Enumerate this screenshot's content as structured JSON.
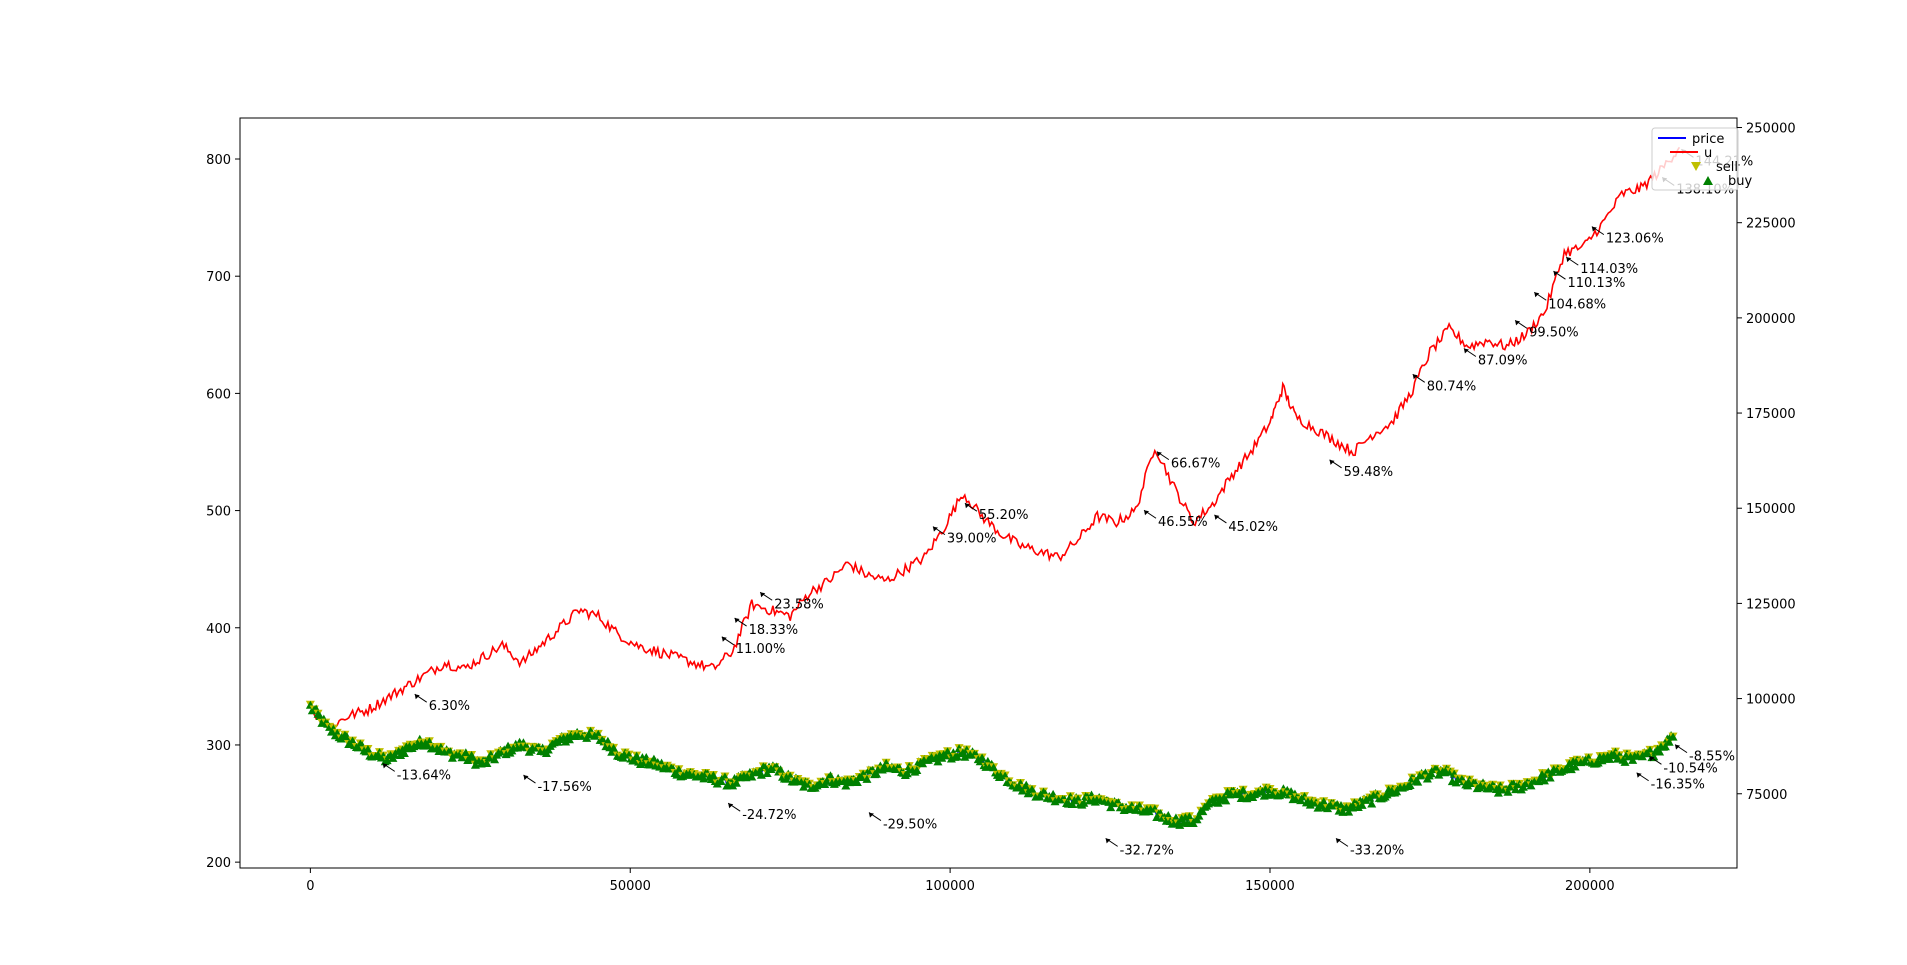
{
  "chart_data": {
    "type": "line",
    "title": "",
    "xlabel": "",
    "ylabel": "",
    "xlim": [
      -11000,
      223000
    ],
    "ylim_left": [
      195,
      835
    ],
    "ylim_right": [
      55500,
      252500
    ],
    "x_ticks": [
      0,
      50000,
      100000,
      150000,
      200000
    ],
    "x_tick_labels": [
      "0",
      "50000",
      "100000",
      "150000",
      "200000"
    ],
    "left_ticks": [
      200,
      300,
      400,
      500,
      600,
      700,
      800
    ],
    "left_tick_labels": [
      "200",
      "300",
      "400",
      "500",
      "600",
      "700",
      "800"
    ],
    "right_ticks": [
      75000,
      100000,
      125000,
      150000,
      175000,
      200000,
      225000,
      250000
    ],
    "right_tick_labels": [
      "75000",
      "100000",
      "125000",
      "150000",
      "175000",
      "200000",
      "225000",
      "250000"
    ],
    "legend": {
      "placement": "upper-right",
      "entries": [
        {
          "label": "price",
          "color": "#0000ff",
          "marker": "line"
        },
        {
          "label": "u",
          "color": "#ff0000",
          "marker": "line"
        },
        {
          "label": "sell",
          "color": "#bfbf00",
          "marker": "triangle-down"
        },
        {
          "label": "buy",
          "color": "#008000",
          "marker": "triangle-up"
        }
      ]
    },
    "series": [
      {
        "name": "u",
        "axis": "left",
        "color": "#ff0000",
        "x": [
          0,
          3000,
          6000,
          9000,
          12000,
          15000,
          18000,
          21000,
          24000,
          27000,
          30000,
          33000,
          36000,
          39000,
          42000,
          45000,
          48000,
          51000,
          54000,
          57000,
          60000,
          63000,
          66000,
          69000,
          72000,
          75000,
          78000,
          81000,
          84000,
          87000,
          90000,
          93000,
          96000,
          99000,
          102000,
          105000,
          108000,
          111000,
          114000,
          117000,
          120000,
          123000,
          126000,
          129000,
          132000,
          135000,
          138000,
          141000,
          144000,
          147000,
          150000,
          152000,
          154000,
          157000,
          160000,
          163000,
          166000,
          169000,
          172000,
          175000,
          178000,
          181000,
          184000,
          187000,
          190000,
          193000,
          196000,
          199000,
          202000,
          205000,
          208000,
          211000,
          214000
        ],
        "y": [
          330,
          315,
          325,
          330,
          340,
          350,
          360,
          370,
          365,
          375,
          385,
          370,
          385,
          400,
          415,
          410,
          395,
          385,
          380,
          375,
          370,
          365,
          380,
          420,
          415,
          410,
          430,
          440,
          455,
          445,
          440,
          450,
          460,
          485,
          515,
          495,
          480,
          470,
          465,
          460,
          475,
          495,
          490,
          500,
          555,
          520,
          490,
          505,
          530,
          550,
          575,
          605,
          580,
          570,
          560,
          550,
          565,
          575,
          600,
          635,
          655,
          640,
          645,
          640,
          650,
          670,
          720,
          725,
          745,
          770,
          775,
          790,
          810
        ]
      },
      {
        "name": "price",
        "axis": "right",
        "color": "#0000ff",
        "x": [
          0,
          3000,
          6000,
          9000,
          12000,
          15000,
          18000,
          21000,
          24000,
          27000,
          30000,
          33000,
          36000,
          39000,
          42000,
          45000,
          48000,
          51000,
          54000,
          57000,
          60000,
          63000,
          66000,
          69000,
          72000,
          75000,
          78000,
          81000,
          84000,
          87000,
          90000,
          93000,
          96000,
          99000,
          102000,
          105000,
          108000,
          111000,
          114000,
          117000,
          120000,
          123000,
          126000,
          129000,
          132000,
          135000,
          138000,
          141000,
          144000,
          147000,
          150000,
          153000,
          156000,
          159000,
          162000,
          165000,
          168000,
          171000,
          174000,
          177000,
          180000,
          183000,
          186000,
          189000,
          192000,
          195000,
          198000,
          201000,
          204000,
          207000,
          210000,
          213000
        ],
        "y": [
          98000,
          92000,
          89000,
          86000,
          84000,
          87000,
          89000,
          86000,
          85000,
          83000,
          86000,
          88000,
          86000,
          89000,
          91000,
          90000,
          86000,
          84000,
          83000,
          81000,
          80000,
          79000,
          78000,
          80000,
          82000,
          79000,
          77000,
          79000,
          78000,
          80000,
          82000,
          81000,
          83000,
          85000,
          86000,
          84000,
          80000,
          77000,
          75000,
          74000,
          73000,
          74000,
          72000,
          71000,
          70000,
          68000,
          68000,
          73000,
          75000,
          75000,
          76000,
          75000,
          73000,
          72000,
          71000,
          73000,
          75000,
          77000,
          80000,
          81000,
          78000,
          77000,
          76000,
          77000,
          79000,
          81000,
          83000,
          84000,
          85000,
          84000,
          86000,
          90000
        ]
      }
    ],
    "markers": {
      "sell": {
        "color": "#bfbf00",
        "shape": "triangle-down",
        "series": "price"
      },
      "buy": {
        "color": "#008000",
        "shape": "triangle-up",
        "series": "price"
      }
    },
    "annotations": [
      {
        "text": "144.21%",
        "x": 214000,
        "y": 810
      },
      {
        "text": "138.10%",
        "x": 211000,
        "y": 786
      },
      {
        "text": "123.06%",
        "x": 200000,
        "y": 744
      },
      {
        "text": "114.03%",
        "x": 196000,
        "y": 718
      },
      {
        "text": "110.13%",
        "x": 194000,
        "y": 706
      },
      {
        "text": "104.68%",
        "x": 191000,
        "y": 688
      },
      {
        "text": "99.50%",
        "x": 188000,
        "y": 664
      },
      {
        "text": "87.09%",
        "x": 180000,
        "y": 640
      },
      {
        "text": "80.74%",
        "x": 172000,
        "y": 618
      },
      {
        "text": "66.67%",
        "x": 132000,
        "y": 552
      },
      {
        "text": "59.48%",
        "x": 159000,
        "y": 545
      },
      {
        "text": "55.20%",
        "x": 102000,
        "y": 508
      },
      {
        "text": "46.55%",
        "x": 130000,
        "y": 502
      },
      {
        "text": "45.02%",
        "x": 141000,
        "y": 498
      },
      {
        "text": "39.00%",
        "x": 97000,
        "y": 488
      },
      {
        "text": "23.58%",
        "x": 70000,
        "y": 432
      },
      {
        "text": "18.33%",
        "x": 66000,
        "y": 410
      },
      {
        "text": "11.00%",
        "x": 64000,
        "y": 394
      },
      {
        "text": "6.30%",
        "x": 16000,
        "y": 345
      },
      {
        "text": "-8.55%",
        "x": 213000,
        "y": 302
      },
      {
        "text": "-10.54%",
        "x": 209000,
        "y": 292
      },
      {
        "text": "-16.35%",
        "x": 207000,
        "y": 278
      },
      {
        "text": "-13.64%",
        "x": 11000,
        "y": 286
      },
      {
        "text": "-17.56%",
        "x": 33000,
        "y": 276
      },
      {
        "text": "-24.72%",
        "x": 65000,
        "y": 252
      },
      {
        "text": "-29.50%",
        "x": 87000,
        "y": 244
      },
      {
        "text": "-32.72%",
        "x": 124000,
        "y": 222
      },
      {
        "text": "-33.20%",
        "x": 160000,
        "y": 222
      }
    ]
  }
}
